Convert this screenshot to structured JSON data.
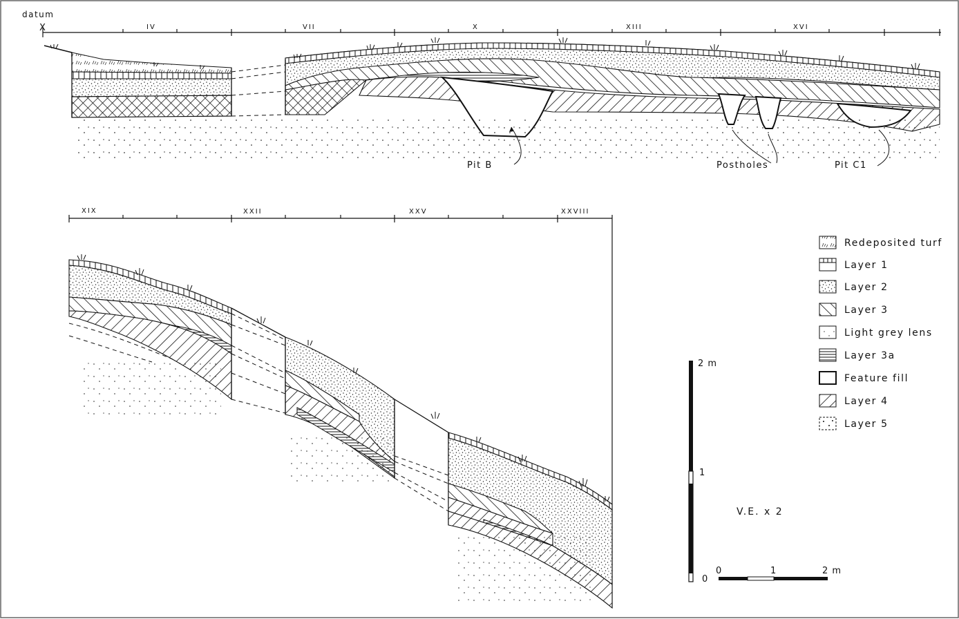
{
  "upper_section": {
    "datum_label": "datum",
    "datum_marker": "X",
    "grid_labels": [
      "IV",
      "VII",
      "X",
      "XIII",
      "XVI"
    ],
    "annotations": {
      "pit_b": "Pit B",
      "postholes": "Postholes",
      "pit_c1": "Pit C1"
    }
  },
  "lower_section": {
    "grid_labels": [
      "XIX",
      "XXII",
      "XXV",
      "XXVIII"
    ]
  },
  "legend": {
    "items": [
      {
        "label": "Redeposited turf",
        "pattern": "turf"
      },
      {
        "label": "Layer 1",
        "pattern": "layer1"
      },
      {
        "label": "Layer 2",
        "pattern": "stipple-dense"
      },
      {
        "label": "Layer 3",
        "pattern": "hatch-ne"
      },
      {
        "label": "Light grey lens",
        "pattern": "stipple-light"
      },
      {
        "label": "Layer 3a",
        "pattern": "horizontal"
      },
      {
        "label": "Feature fill",
        "pattern": "blank"
      },
      {
        "label": "Layer 4",
        "pattern": "hatch-nw"
      },
      {
        "label": "Layer 5",
        "pattern": "dots-sparse"
      }
    ]
  },
  "vertical_scale": {
    "top_label": "2 m",
    "mid_label": "1",
    "bottom_label": "0"
  },
  "vertical_exaggeration": "V.E. x 2",
  "horizontal_scale": {
    "labels": [
      "0",
      "1",
      "2 m"
    ]
  }
}
